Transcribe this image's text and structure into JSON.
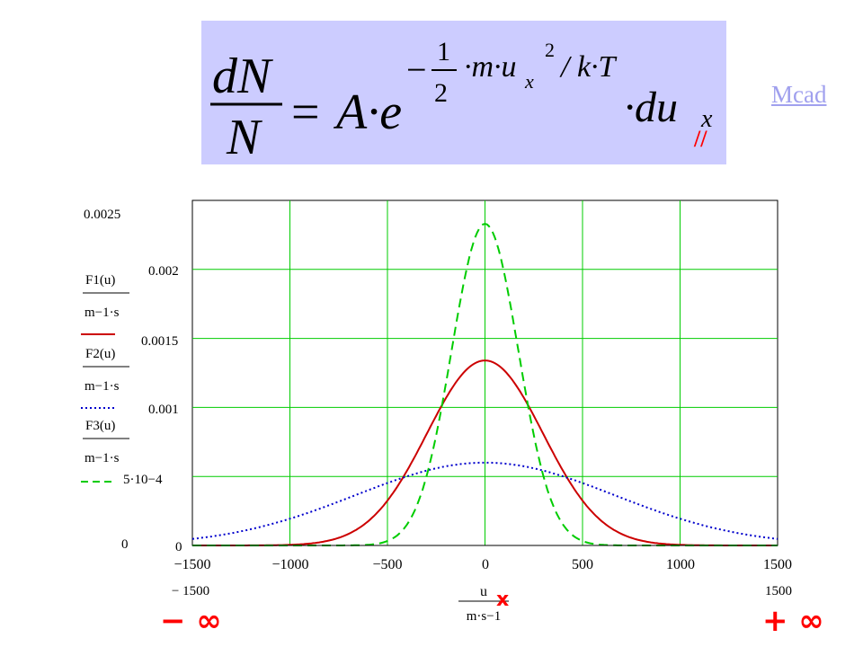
{
  "formula": {
    "lhs_num": "dN",
    "lhs_den": "N",
    "eq": "=",
    "amp": "A·e",
    "exp_minus": "−",
    "frac_num": "1",
    "frac_den": "2",
    "exp_body": "·m·u",
    "exp_sub": "x",
    "exp_sup": "2",
    "exp_tail": "/ k·T",
    "du": "·du",
    "du_sub": "x",
    "mark": "//"
  },
  "link": {
    "label": "Mcad"
  },
  "colors": {
    "formula_bg": "#ccccff",
    "grid": "#00cc00",
    "F1": "#cc0000",
    "F2": "#0000cc",
    "F3": "#00cc00",
    "annotation": "#ff0000",
    "link": "#a0a0ee"
  },
  "chart_data": {
    "type": "line",
    "x_range": [
      -1500,
      1500
    ],
    "y_range": [
      0,
      0.0025
    ],
    "grid": true,
    "x_ticks": [
      "−1500",
      "−1000",
      "−500",
      "0",
      "500",
      "1000",
      "1500"
    ],
    "y_ticks": [
      "0.0025",
      "0.002",
      "0.0015",
      "0.001",
      "5·10−4",
      "0"
    ],
    "x_limit_labels": [
      "− 1500",
      "1500"
    ],
    "y_corner_label": "0",
    "xlabel": {
      "num": "u",
      "den": "m·s−1"
    },
    "legend": [
      {
        "num": "F1(u)",
        "den": "m−1·s",
        "style": "solid"
      },
      {
        "num": "F2(u)",
        "den": "m−1·s",
        "style": "dotted"
      },
      {
        "num": "F3(u)",
        "den": "m−1·s",
        "style": "dashed"
      }
    ],
    "series": [
      {
        "key": "F1",
        "peak_x": 0,
        "peak_y": 0.00134,
        "sigma": 297,
        "style": "solid"
      },
      {
        "key": "F2",
        "peak_x": 0,
        "peak_y": 0.0006,
        "sigma": 665,
        "style": "dotted"
      },
      {
        "key": "F3",
        "peak_x": 0,
        "peak_y": 0.00233,
        "sigma": 171,
        "style": "dashed"
      }
    ],
    "annotations": {
      "left": "− ∞",
      "right": "+ ∞",
      "x_mark": "x"
    }
  }
}
